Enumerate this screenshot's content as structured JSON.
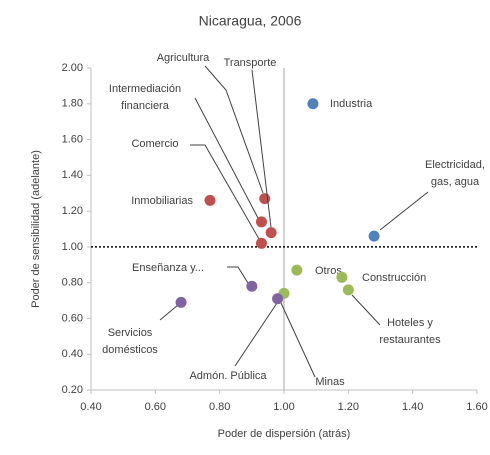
{
  "chart_data": {
    "type": "scatter",
    "title": "Nicaragua, 2006",
    "x_label": "Poder de dispersión (atrás)",
    "y_label": "Poder de sensibilidad (adelante)",
    "xlim": [
      0.4,
      1.6
    ],
    "ylim": [
      0.2,
      2.0
    ],
    "xticks": [
      {
        "value": 0.4,
        "label": "0.40"
      },
      {
        "value": 0.6,
        "label": "0.60"
      },
      {
        "value": 0.8,
        "label": "0.80"
      },
      {
        "value": 1.0,
        "label": "1.00"
      },
      {
        "value": 1.2,
        "label": "1.20"
      },
      {
        "value": 1.4,
        "label": "1.40"
      },
      {
        "value": 1.6,
        "label": "1.60"
      }
    ],
    "yticks": [
      {
        "value": 0.2,
        "label": "0.20"
      },
      {
        "value": 0.4,
        "label": "0.40"
      },
      {
        "value": 0.6,
        "label": "0.60"
      },
      {
        "value": 0.8,
        "label": "0.80"
      },
      {
        "value": 1.0,
        "label": "1.00"
      },
      {
        "value": 1.2,
        "label": "1.20"
      },
      {
        "value": 1.4,
        "label": "1.40"
      },
      {
        "value": 1.6,
        "label": "1.60"
      },
      {
        "value": 1.8,
        "label": "1.80"
      },
      {
        "value": 2.0,
        "label": "2.00"
      }
    ],
    "x_reference": 1.0,
    "y_reference": 1.0,
    "x": [
      1.09,
      1.28,
      0.77,
      0.94,
      0.93,
      0.96,
      0.93,
      1.04,
      1.18,
      1.2,
      1.0,
      0.9,
      0.98,
      0.68
    ],
    "values": [
      1.8,
      1.06,
      1.26,
      1.27,
      1.14,
      1.08,
      1.02,
      0.87,
      0.83,
      0.76,
      0.74,
      0.78,
      0.71,
      0.69
    ],
    "colors": [
      "#4f81bd",
      "#4f81bd",
      "#c0504d",
      "#c0504d",
      "#c0504d",
      "#c0504d",
      "#c0504d",
      "#9bbb59",
      "#9bbb59",
      "#9bbb59",
      "#9bbb59",
      "#8064a2",
      "#8064a2",
      "#8064a2"
    ],
    "labels": [
      [
        "Industria"
      ],
      [
        "Electricidad,",
        "gas, agua"
      ],
      [
        "Inmobiliarias"
      ],
      [
        "Agricultura"
      ],
      [
        "Intermediación",
        "financiera"
      ],
      [
        "Transporte"
      ],
      [
        "Comercio"
      ],
      [
        "Otros"
      ],
      [
        "Construcción"
      ],
      [
        "Hoteles y",
        "restaurantes"
      ],
      [
        "Admón. Pública"
      ],
      [
        "Enseñanza y..."
      ],
      [
        "Minas"
      ],
      [
        "Servicios",
        "domésticos"
      ]
    ]
  }
}
